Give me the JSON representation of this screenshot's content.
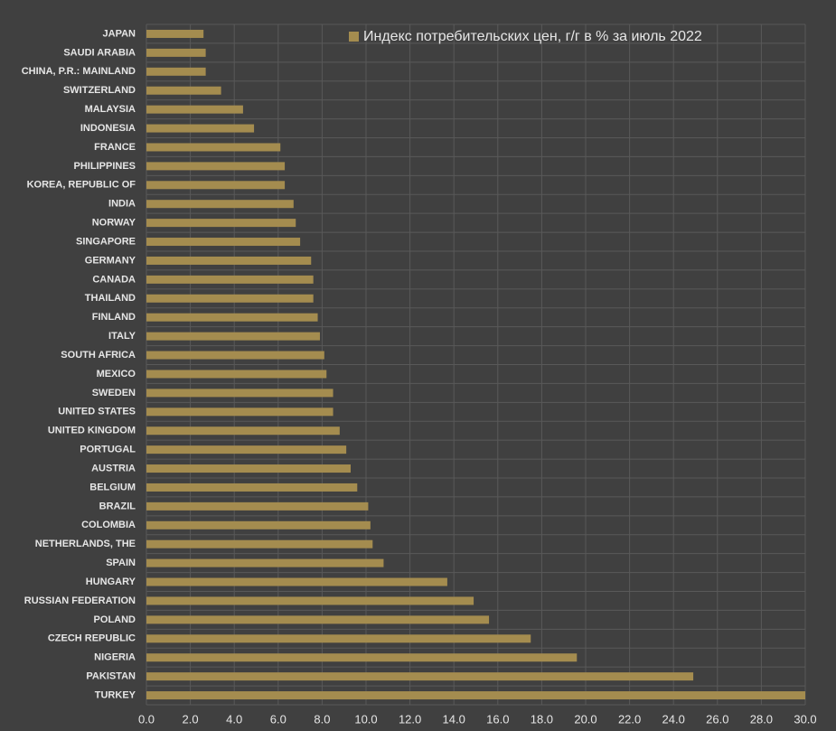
{
  "chart_data": {
    "type": "barh",
    "legend": "top-center",
    "series": [
      {
        "name": "Индекс потребительских цен, г/г в % за июль 2022",
        "color": "#a48c4f",
        "values": [
          2.6,
          2.7,
          2.7,
          3.4,
          4.4,
          4.9,
          6.1,
          6.3,
          6.3,
          6.7,
          6.8,
          7.0,
          7.5,
          7.6,
          7.6,
          7.8,
          7.9,
          8.1,
          8.2,
          8.5,
          8.5,
          8.8,
          9.1,
          9.3,
          9.6,
          10.1,
          10.2,
          10.3,
          10.8,
          13.7,
          14.9,
          15.6,
          17.5,
          19.6,
          24.9,
          30.0
        ]
      }
    ],
    "categories": [
      "JAPAN",
      "SAUDI ARABIA",
      "CHINA, P.R.: MAINLAND",
      "SWITZERLAND",
      "MALAYSIA",
      "INDONESIA",
      "FRANCE",
      "PHILIPPINES",
      "KOREA, REPUBLIC OF",
      "INDIA",
      "NORWAY",
      "SINGAPORE",
      "GERMANY",
      "CANADA",
      "THAILAND",
      "FINLAND",
      "ITALY",
      "SOUTH AFRICA",
      "MEXICO",
      "SWEDEN",
      "UNITED STATES",
      "UNITED KINGDOM",
      "PORTUGAL",
      "AUSTRIA",
      "BELGIUM",
      "BRAZIL",
      "COLOMBIA",
      "NETHERLANDS, THE",
      "SPAIN",
      "HUNGARY",
      "RUSSIAN FEDERATION",
      "POLAND",
      "CZECH REPUBLIC",
      "NIGERIA",
      "PAKISTAN",
      "TURKEY"
    ],
    "xlim": [
      0,
      30
    ],
    "xticks": [
      {
        "value": 0,
        "label": "0.0"
      },
      {
        "value": 2,
        "label": "2.0"
      },
      {
        "value": 4,
        "label": "4.0"
      },
      {
        "value": 6,
        "label": "6.0"
      },
      {
        "value": 8,
        "label": "8.0"
      },
      {
        "value": 10,
        "label": "10.0"
      },
      {
        "value": 12,
        "label": "12.0"
      },
      {
        "value": 14,
        "label": "14.0"
      },
      {
        "value": 16,
        "label": "16.0"
      },
      {
        "value": 18,
        "label": "18.0"
      },
      {
        "value": 20,
        "label": "20.0"
      },
      {
        "value": 22,
        "label": "22.0"
      },
      {
        "value": 24,
        "label": "24.0"
      },
      {
        "value": 26,
        "label": "26.0"
      },
      {
        "value": 28,
        "label": "28.0"
      },
      {
        "value": 30,
        "label": "30.0"
      }
    ],
    "grid": true
  }
}
